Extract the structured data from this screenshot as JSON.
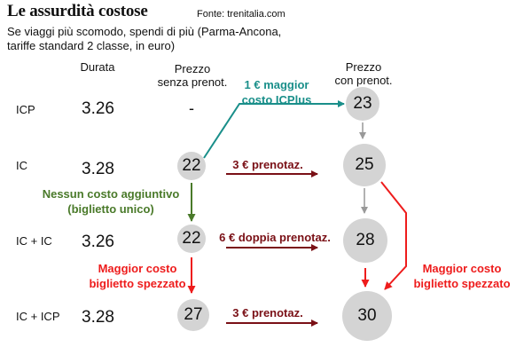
{
  "header": {
    "title": "Le assurdità costose",
    "source": "Fonte: trenitalia.com",
    "subtitle": "Se viaggi più scomodo, spendi di più (Parma-Ancona, tariffe standard 2 classe, in euro)"
  },
  "columns": {
    "durata": "Durata",
    "senza": [
      "Prezzo",
      "senza prenot."
    ],
    "con": [
      "Prezzo",
      "con prenot."
    ]
  },
  "rows": [
    {
      "label": "ICP",
      "duration": "3.26",
      "price_without": "-",
      "price_with": "23"
    },
    {
      "label": "IC",
      "duration": "3.28",
      "price_without": "22",
      "price_with": "25"
    },
    {
      "label": "IC + IC",
      "duration": "3.26",
      "price_without": "22",
      "price_with": "28"
    },
    {
      "label": "IC + ICP",
      "duration": "3.28",
      "price_without": "27",
      "price_with": "30"
    }
  ],
  "annotations": {
    "icplus": [
      "1 € maggior",
      "costo ICPlus"
    ],
    "prenotaz_ic": "3 € prenotaz.",
    "doppia": "6 € doppia prenotaz.",
    "prenotaz_icp": "3 € prenotaz.",
    "nessun": [
      "Nessun costo aggiuntivo",
      "(biglietto unico)"
    ],
    "spezzato_left": [
      "Maggior costo",
      "biglietto spezzato"
    ],
    "spezzato_right": [
      "Maggior costo",
      "biglietto spezzato"
    ]
  },
  "colors": {
    "teal": "#1a8f8a",
    "dark_red": "#7a1016",
    "red": "#ee1c1c",
    "green": "#4a7a2a",
    "circle": "#d4d4d4"
  }
}
